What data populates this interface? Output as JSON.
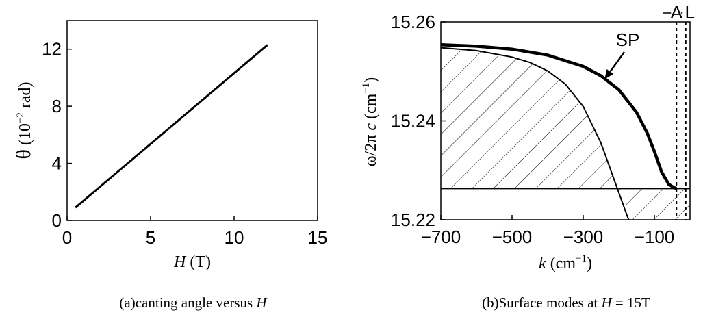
{
  "chart_data": [
    {
      "type": "line",
      "xlabel": {
        "var": "H",
        "unit": " (T)"
      },
      "ylabel": {
        "var": "θ",
        "unit_pre": " (10",
        "exp": "−2",
        "unit_post": " rad)"
      },
      "xlim": [
        0,
        15
      ],
      "ylim": [
        0,
        14
      ],
      "xticks": [
        "0",
        "5",
        "10",
        "15"
      ],
      "yticks": [
        "0",
        "4",
        "8",
        "12"
      ],
      "series": [
        {
          "x": [
            0.5,
            12
          ],
          "y": [
            0.9,
            12.3
          ]
        }
      ],
      "caption": {
        "prefix": "(a)canting angle versus ",
        "var": "H"
      }
    },
    {
      "type": "line",
      "xlabel": {
        "var": "k",
        "unit_pre": " (cm",
        "exp": "−1",
        "unit_post": ")"
      },
      "ylabel": {
        "text": "ω/2π ",
        "var": "c",
        "unit_pre": " (cm",
        "exp": "−1",
        "unit_post": ")"
      },
      "xlim": [
        -700,
        0
      ],
      "ylim": [
        15.22,
        15.26
      ],
      "xticks": [
        "−700",
        "−500",
        "−300",
        "−100"
      ],
      "yticks": [
        "15.22",
        "15.24",
        "15.26"
      ],
      "vlines": [
        {
          "label": "A",
          "x": -38
        },
        {
          "label": "L",
          "x": -12
        }
      ],
      "hline": 15.2263,
      "annotation": {
        "text": "SP",
        "points_to": [
          -240,
          15.2484
        ]
      },
      "series": [
        {
          "x": [
            -700,
            -600,
            -500,
            -450,
            -400,
            -350,
            -300,
            -250,
            -200,
            -180,
            -175,
            -170,
            -160
          ],
          "y": [
            15.2548,
            15.2542,
            15.2529,
            15.2518,
            15.2501,
            15.2474,
            15.2429,
            15.2355,
            15.2255,
            15.2215,
            15.2205,
            15.2197,
            15.2185
          ]
        },
        {
          "x": [
            -700,
            -600,
            -500,
            -400,
            -300,
            -250,
            -200,
            -150,
            -120,
            -100,
            -80,
            -60,
            -45,
            -38
          ],
          "y": [
            15.2554,
            15.2551,
            15.2545,
            15.2533,
            15.251,
            15.2491,
            15.2463,
            15.2417,
            15.2375,
            15.2338,
            15.2297,
            15.2272,
            15.2265,
            15.2263
          ]
        }
      ],
      "caption": {
        "prefix": "(b)Surface modes at ",
        "var": "H",
        "suffix": " = 15T"
      }
    }
  ]
}
